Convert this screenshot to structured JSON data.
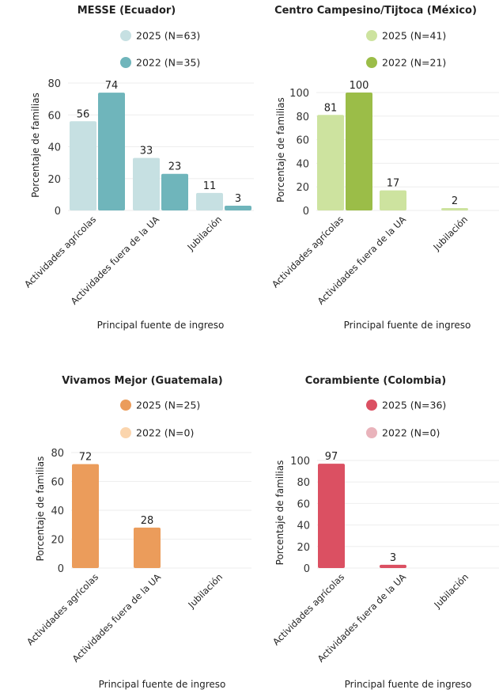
{
  "chart_data": [
    {
      "type": "bar",
      "title": "MESSE (Ecuador)",
      "xlabel": "Principal fuente de ingreso",
      "ylabel": "Porcentaje de familias",
      "categories": [
        "Actividades agrícolas",
        "Actividades fuera de la UA",
        "Jubilación"
      ],
      "ylim": [
        0,
        80
      ],
      "yticks": [
        0,
        20,
        40,
        60,
        80
      ],
      "grid": true,
      "legend_position": "top",
      "series": [
        {
          "name": "2025 (N=63)",
          "color": "#c6e0e2",
          "values": [
            56,
            33,
            11
          ]
        },
        {
          "name": "2022 (N=35)",
          "color": "#6fb5bb",
          "values": [
            74,
            23,
            3
          ]
        }
      ]
    },
    {
      "type": "bar",
      "title": "Centro Campesino/Tijtoca (México)",
      "xlabel": "Principal fuente de ingreso",
      "ylabel": "Porcentaje de familias",
      "categories": [
        "Actividades agrícolas",
        "Actividades fuera de la UA",
        "Jubilación"
      ],
      "ylim": [
        0,
        100
      ],
      "yticks": [
        0,
        20,
        40,
        60,
        80,
        100
      ],
      "grid": true,
      "legend_position": "top",
      "series": [
        {
          "name": "2025 (N=41)",
          "color": "#cde39f",
          "values": [
            81,
            17,
            2
          ]
        },
        {
          "name": "2022 (N=21)",
          "color": "#9bbd48",
          "values": [
            100,
            null,
            null
          ]
        }
      ]
    },
    {
      "type": "bar",
      "title": "Vivamos Mejor (Guatemala)",
      "xlabel": "Principal fuente de ingreso",
      "ylabel": "Porcentaje de familias",
      "categories": [
        "Actividades agrícolas",
        "Actividades fuera de la UA",
        "Jubilación"
      ],
      "ylim": [
        0,
        80
      ],
      "yticks": [
        0,
        20,
        40,
        60,
        80
      ],
      "grid": true,
      "legend_position": "top",
      "series": [
        {
          "name": "2025 (N=25)",
          "color": "#eb9c5b",
          "values": [
            72,
            28,
            null
          ]
        },
        {
          "name": "2022 (N=0)",
          "color": "#fbd5ad",
          "values": [
            null,
            null,
            null
          ]
        }
      ]
    },
    {
      "type": "bar",
      "title": "Corambiente (Colombia)",
      "xlabel": "Principal fuente de ingreso",
      "ylabel": "Porcentaje de familias",
      "categories": [
        "Actividades agrícolas",
        "Actividades fuera de la UA",
        "Jubilación"
      ],
      "ylim": [
        0,
        100
      ],
      "yticks": [
        0,
        20,
        40,
        60,
        80,
        100
      ],
      "grid": true,
      "legend_position": "top",
      "series": [
        {
          "name": "2025 (N=36)",
          "color": "#db5062",
          "values": [
            97,
            3,
            null
          ]
        },
        {
          "name": "2022 (N=0)",
          "color": "#e9b3bb",
          "values": [
            null,
            null,
            null
          ]
        }
      ]
    }
  ]
}
